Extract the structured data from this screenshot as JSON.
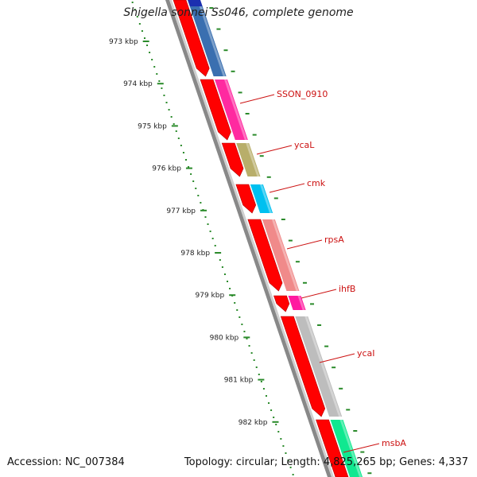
{
  "title": "Shigella sonnei Ss046, complete genome",
  "footer": {
    "accession": "Accession: NC_007384",
    "topology": "Topology: circular; Length: 4,825,265 bp; Genes: 4,337"
  },
  "ruler": {
    "unit": "kbp",
    "ticks": [
      {
        "label": "973 kbp"
      },
      {
        "label": "974 kbp"
      },
      {
        "label": "975 kbp"
      },
      {
        "label": "976 kbp"
      },
      {
        "label": "977 kbp"
      },
      {
        "label": "978 kbp"
      },
      {
        "label": "979 kbp"
      },
      {
        "label": "980 kbp"
      },
      {
        "label": "981 kbp"
      },
      {
        "label": "982 kbp"
      }
    ]
  },
  "genes": [
    {
      "label": "",
      "color": "#3a6fb0"
    },
    {
      "label": "SSON_0910",
      "color": "#ff2aa0"
    },
    {
      "label": "ycaL",
      "color": "#b8ae6a"
    },
    {
      "label": "cmk",
      "color": "#00c0f0"
    },
    {
      "label": "rpsA",
      "color": "#f08a8a"
    },
    {
      "label": "ihfB",
      "color": "#ff1aa0"
    },
    {
      "label": "ycaI",
      "color": "#bdbdbd"
    },
    {
      "label": "msbA",
      "color": "#10e890"
    }
  ],
  "colors": {
    "strand_arrow": "#ff0000",
    "label": "#cc1111",
    "ruler_dots": "#2a8a2a",
    "backbone": "#888888"
  }
}
